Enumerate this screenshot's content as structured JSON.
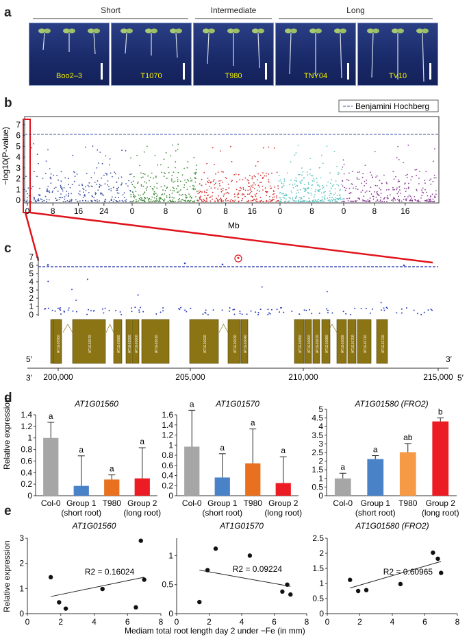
{
  "panels": {
    "a": "a",
    "b": "b",
    "c": "c",
    "d": "d",
    "e": "e"
  },
  "panel_a": {
    "groups": [
      {
        "label": "Short"
      },
      {
        "label": "Intermediate"
      },
      {
        "label": "Long"
      }
    ],
    "photos": [
      "Boo2–3",
      "T1070",
      "T980",
      "TNY04",
      "TV10"
    ],
    "label_color": "#f3f000"
  },
  "panel_b": {
    "legend": "Benjamini Hochberg",
    "ylabel": "−log10(P-value)",
    "xlabel": "Mb",
    "threshold": 6.1,
    "y_ticks": [
      0,
      1,
      2,
      3,
      4,
      5,
      6,
      7
    ],
    "chromosomes": [
      {
        "color": "#3a4fa0",
        "ticks": [
          "0",
          "8",
          "16",
          "24"
        ]
      },
      {
        "color": "#3d8a37",
        "ticks": [
          "0",
          "8"
        ]
      },
      {
        "color": "#d42d2d",
        "ticks": [
          "0",
          "8",
          "16"
        ]
      },
      {
        "color": "#5bc2c2",
        "ticks": [
          "0",
          "8"
        ]
      },
      {
        "color": "#8a3c98",
        "ticks": [
          "0",
          "8",
          "16"
        ]
      }
    ]
  },
  "panel_c": {
    "y_ticks": [
      0,
      1,
      2,
      3,
      4,
      5,
      6,
      7
    ],
    "threshold": 6.0,
    "genes": [
      "AT1G01550",
      "AT1G01560",
      "AT1G01570",
      "AT1G01580",
      "AT1G01590",
      "AT1G01600",
      "AT1G01610",
      "AT1G01620",
      "AT1G01630",
      "AT1G01640",
      "AT1G01650",
      "AT1G01660",
      "AT1G01670",
      "AT1G01680",
      "AT1G01690",
      "AT1G01700",
      "AT1G01710",
      "AT1G01720"
    ],
    "five_prime": "5′",
    "three_prime": "3′",
    "pos_ticks": [
      "200,000",
      "205,000",
      "210,000",
      "215,000"
    ],
    "gene_color": "#8b7413"
  },
  "chart_data": [
    {
      "type": "bar",
      "title": "AT1G01560",
      "ylabel": "Relative expression",
      "categories": [
        "Col-0",
        "Group 1 (short root)",
        "T980",
        "Group 2 (long root)"
      ],
      "values": [
        1.0,
        0.17,
        0.28,
        0.3
      ],
      "errors": [
        0.27,
        0.52,
        0.08,
        0.53
      ],
      "letters": [
        "a",
        "a",
        "a",
        "a"
      ],
      "ylim": [
        0,
        1.4
      ],
      "y_ticks": [
        "0",
        "0.2",
        "0.4",
        "0.6",
        "0.8",
        "1",
        "1.2",
        "1.4"
      ],
      "colors": [
        "#a6a6a6",
        "#4a82c8",
        "#e8701e",
        "#ec1c24"
      ]
    },
    {
      "type": "bar",
      "title": "AT1G01570",
      "categories": [
        "Col-0",
        "Group 1 (short root)",
        "T980",
        "Group 2 (long root)"
      ],
      "values": [
        0.97,
        0.36,
        0.64,
        0.25
      ],
      "errors": [
        0.72,
        0.47,
        0.68,
        0.52
      ],
      "letters": [
        "a",
        "a",
        "a",
        "a"
      ],
      "ylim": [
        0,
        1.6
      ],
      "y_ticks": [
        "0",
        "0.2",
        "0.4",
        "0.6",
        "0.8",
        "1",
        "1.2",
        "1.4",
        "1.6"
      ],
      "colors": [
        "#a6a6a6",
        "#4a82c8",
        "#e8701e",
        "#ec1c24"
      ]
    },
    {
      "type": "bar",
      "title": "AT1G01580 (FRO2)",
      "categories": [
        "Col-0",
        "Group 1 (short root)",
        "T980",
        "Group 2 (long root)"
      ],
      "values": [
        1.0,
        2.12,
        2.52,
        4.3
      ],
      "errors": [
        0.3,
        0.2,
        0.5,
        0.2
      ],
      "letters": [
        "a",
        "a",
        "ab",
        "b"
      ],
      "ylim": [
        0,
        5
      ],
      "y_ticks": [
        "0",
        "0.5",
        "1",
        "1.5",
        "2",
        "2.5",
        "3",
        "3.5",
        "4",
        "4.5",
        "5"
      ],
      "colors": [
        "#a6a6a6",
        "#4a82c8",
        "#f79a46",
        "#ec1c24"
      ]
    },
    {
      "type": "scatter",
      "title": "AT1G01560",
      "ylabel": "Relative expression",
      "x": [
        1.4,
        1.9,
        2.3,
        4.5,
        6.5,
        6.8,
        7.0
      ],
      "y": [
        1.45,
        0.45,
        0.2,
        0.98,
        0.25,
        2.9,
        1.35
      ],
      "trend": [
        [
          1.4,
          0.68
        ],
        [
          7.0,
          1.45
        ]
      ],
      "r2": "R2 = 0.16024",
      "xlim": [
        0,
        8
      ],
      "ylim": [
        0,
        3
      ],
      "x_ticks": [
        "0",
        "2",
        "4",
        "6",
        "8"
      ],
      "y_ticks": [
        "0",
        "1",
        "2",
        "3"
      ]
    },
    {
      "type": "scatter",
      "title": "AT1G01570",
      "x": [
        1.4,
        1.9,
        2.4,
        4.5,
        6.5,
        6.8,
        7.0
      ],
      "y": [
        0.2,
        0.75,
        1.12,
        1.0,
        0.38,
        0.5,
        0.33
      ],
      "trend": [
        [
          1.4,
          0.75
        ],
        [
          7.0,
          0.47
        ]
      ],
      "r2": "R2 = 0.09224",
      "xlim": [
        0,
        8
      ],
      "ylim": [
        0,
        1.3
      ],
      "x_ticks": [
        "0",
        "2",
        "4",
        "6",
        "8"
      ],
      "y_ticks": [
        "0",
        "0.5",
        "1"
      ]
    },
    {
      "type": "scatter",
      "title": "AT1G01580 (FRO2)",
      "x": [
        1.4,
        1.9,
        2.4,
        4.5,
        6.5,
        6.8,
        7.0
      ],
      "y": [
        1.12,
        0.75,
        0.78,
        0.98,
        2.02,
        1.82,
        1.35
      ],
      "trend": [
        [
          1.4,
          0.85
        ],
        [
          7.0,
          1.73
        ]
      ],
      "r2": "R2 = 0.60965",
      "xlim": [
        0,
        8
      ],
      "ylim": [
        0,
        2.5
      ],
      "x_ticks": [
        "0",
        "2",
        "4",
        "6",
        "8"
      ],
      "y_ticks": [
        "0",
        "0.5",
        "1",
        "1.5",
        "2",
        "2.5"
      ]
    }
  ],
  "panel_e_xlabel": "Mediam total root length day 2 under −Fe (in mm)"
}
